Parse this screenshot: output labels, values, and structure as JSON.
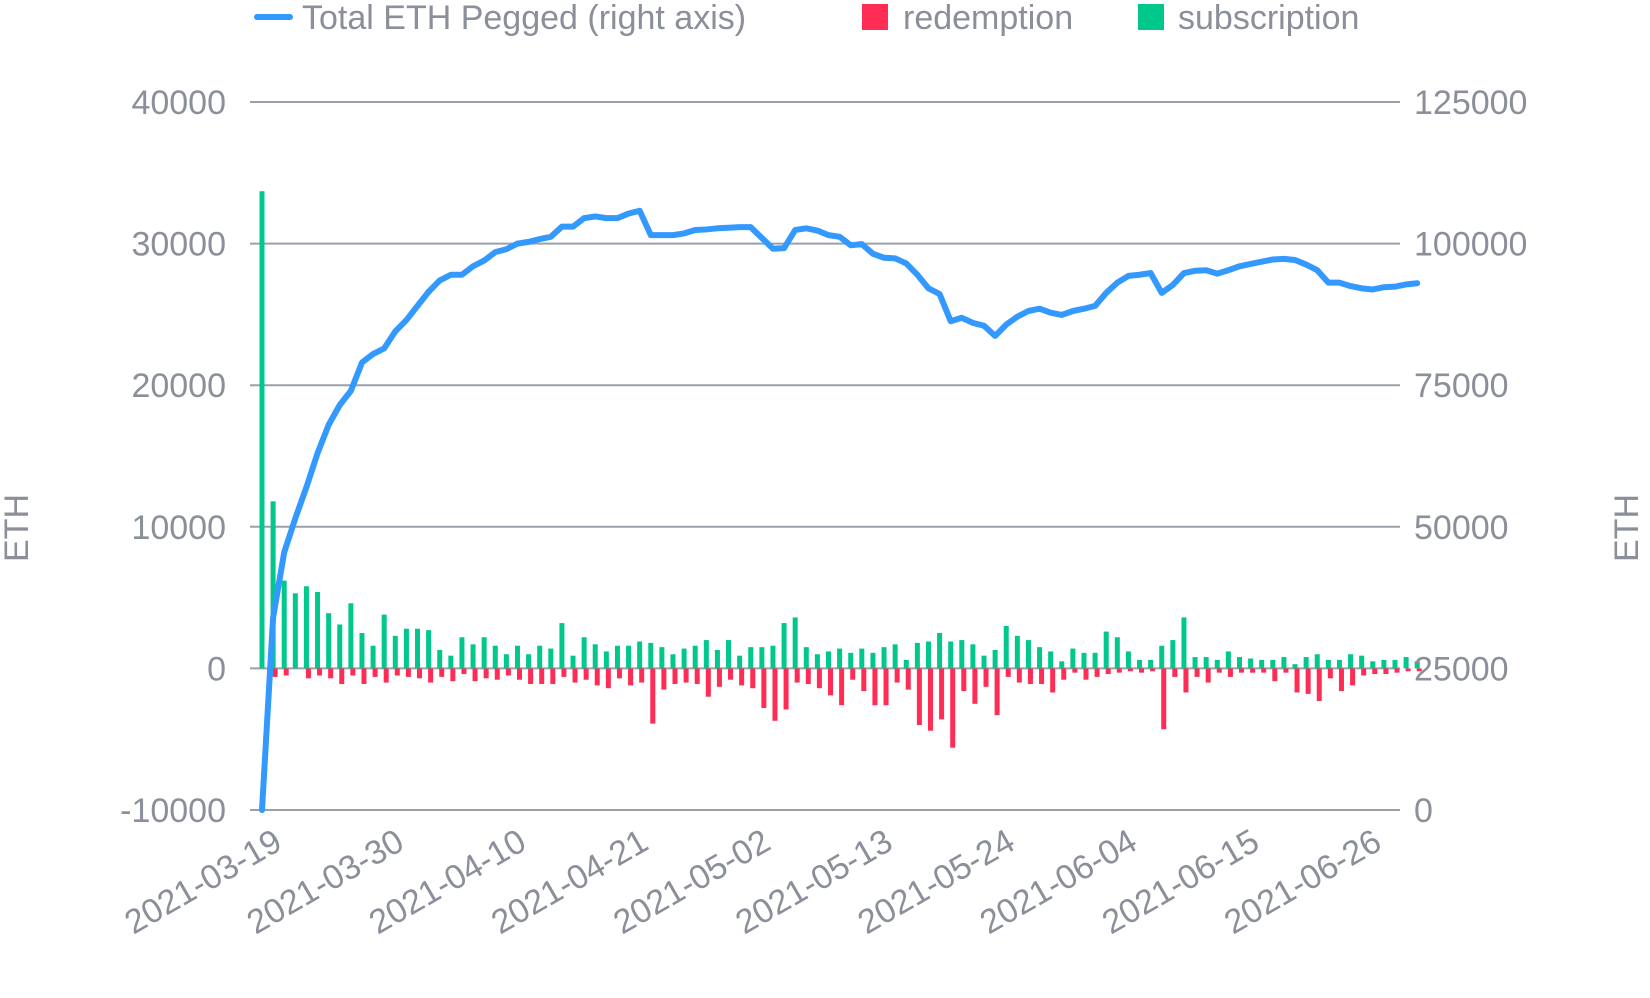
{
  "chart_data": {
    "type": "bar",
    "legend": {
      "placement": "top",
      "entries": [
        {
          "label": "Total ETH Pegged (right axis)",
          "color": "#3399ff",
          "shape": "line"
        },
        {
          "label": "redemption",
          "color": "#ff2d55",
          "shape": "square"
        },
        {
          "label": "subscription",
          "color": "#00c78c",
          "shape": "square"
        }
      ]
    },
    "y_left": {
      "label": "ETH",
      "min": -10000,
      "max": 40000,
      "ticks": [
        "40000",
        "30000",
        "20000",
        "10000",
        "0",
        "-10000"
      ]
    },
    "y_right": {
      "label": "ETH",
      "min": 0,
      "max": 125000,
      "ticks": [
        "125000",
        "100000",
        "75000",
        "50000",
        "25000",
        "0"
      ]
    },
    "x": {
      "start_date": "2021-03-19",
      "end_date": "2021-06-29",
      "tick_labels": [
        "2021-03-19",
        "2021-03-30",
        "2021-04-10",
        "2021-04-21",
        "2021-05-02",
        "2021-05-13",
        "2021-05-24",
        "2021-06-04",
        "2021-06-15",
        "2021-06-26"
      ]
    },
    "grid": true,
    "series": [
      {
        "name": "subscription",
        "type": "bar",
        "axis": "left",
        "color": "#00c78c",
        "values": [
          33700,
          11800,
          6200,
          5300,
          5800,
          5400,
          3900,
          3100,
          4600,
          2500,
          1600,
          3800,
          2300,
          2800,
          2800,
          2700,
          1300,
          900,
          2200,
          1700,
          2200,
          1600,
          1000,
          1600,
          1000,
          1600,
          1400,
          3200,
          900,
          2200,
          1700,
          1200,
          1600,
          1600,
          1900,
          1800,
          1500,
          1000,
          1400,
          1600,
          2000,
          1300,
          2000,
          900,
          1500,
          1500,
          1600,
          3200,
          3600,
          1500,
          1000,
          1200,
          1400,
          1100,
          1400,
          1100,
          1500,
          1700,
          600,
          1800,
          1900,
          2500,
          1900,
          2000,
          1700,
          900,
          1300,
          3000,
          2300,
          2000,
          1500,
          1200,
          500,
          1400,
          1100,
          1100,
          2600,
          2200,
          1200,
          600,
          600,
          1600,
          2000,
          3600,
          800,
          800,
          600,
          1200,
          800,
          700,
          600,
          600,
          800,
          300,
          800,
          1000,
          600,
          600,
          1000,
          900,
          500,
          600,
          600,
          800,
          500
        ]
      },
      {
        "name": "redemption",
        "type": "bar",
        "axis": "left",
        "color": "#ff2d55",
        "values": [
          0,
          -600,
          -500,
          0,
          -700,
          -500,
          -700,
          -1100,
          -500,
          -1100,
          -600,
          -1000,
          -500,
          -600,
          -700,
          -1000,
          -600,
          -900,
          -400,
          -900,
          -700,
          -800,
          -500,
          -800,
          -1100,
          -1100,
          -1100,
          -600,
          -1000,
          -800,
          -1200,
          -1400,
          -700,
          -1200,
          -1000,
          -3900,
          -1500,
          -1100,
          -1000,
          -1100,
          -2000,
          -1300,
          -800,
          -1200,
          -1400,
          -2800,
          -3700,
          -2900,
          -1000,
          -1100,
          -1400,
          -1900,
          -2600,
          -800,
          -1600,
          -2600,
          -2600,
          -1000,
          -1500,
          -4000,
          -4400,
          -3600,
          -5600,
          -1600,
          -2500,
          -1300,
          -3300,
          -600,
          -1000,
          -1100,
          -1100,
          -1700,
          -800,
          -300,
          -800,
          -600,
          -400,
          -300,
          -200,
          -300,
          -200,
          -4300,
          -600,
          -1700,
          -600,
          -1000,
          -300,
          -600,
          -300,
          -300,
          -300,
          -900,
          -300,
          -1700,
          -1800,
          -2300,
          -700,
          -1600,
          -1200,
          -500,
          -400,
          -400,
          -300,
          -200,
          -200
        ]
      },
      {
        "name": "Total ETH Pegged (right axis)",
        "type": "line",
        "axis": "right",
        "color": "#3399ff",
        "values": [
          0,
          34000,
          45500,
          51500,
          57000,
          63000,
          68000,
          71500,
          74000,
          79000,
          80500,
          81500,
          84500,
          86500,
          89000,
          91500,
          93500,
          94500,
          94500,
          96000,
          97000,
          98500,
          99000,
          100000,
          100300,
          100800,
          101200,
          103000,
          103000,
          104500,
          104800,
          104500,
          104500,
          105300,
          105800,
          101500,
          101500,
          101500,
          101800,
          102400,
          102500,
          102700,
          102800,
          102900,
          102900,
          101000,
          99100,
          99200,
          102400,
          102700,
          102300,
          101500,
          101200,
          99700,
          99900,
          98200,
          97500,
          97400,
          96500,
          94500,
          92100,
          91100,
          86300,
          86900,
          86000,
          85500,
          83700,
          85700,
          87100,
          88100,
          88500,
          87800,
          87400,
          88100,
          88500,
          89000,
          91300,
          93100,
          94300,
          94500,
          94800,
          91300,
          92700,
          94800,
          95200,
          95300,
          94700,
          95300,
          96000,
          96400,
          96800,
          97200,
          97300,
          97100,
          96300,
          95300,
          93100,
          93100,
          92500,
          92100,
          91900,
          92300,
          92400,
          92800,
          93000
        ]
      }
    ]
  }
}
